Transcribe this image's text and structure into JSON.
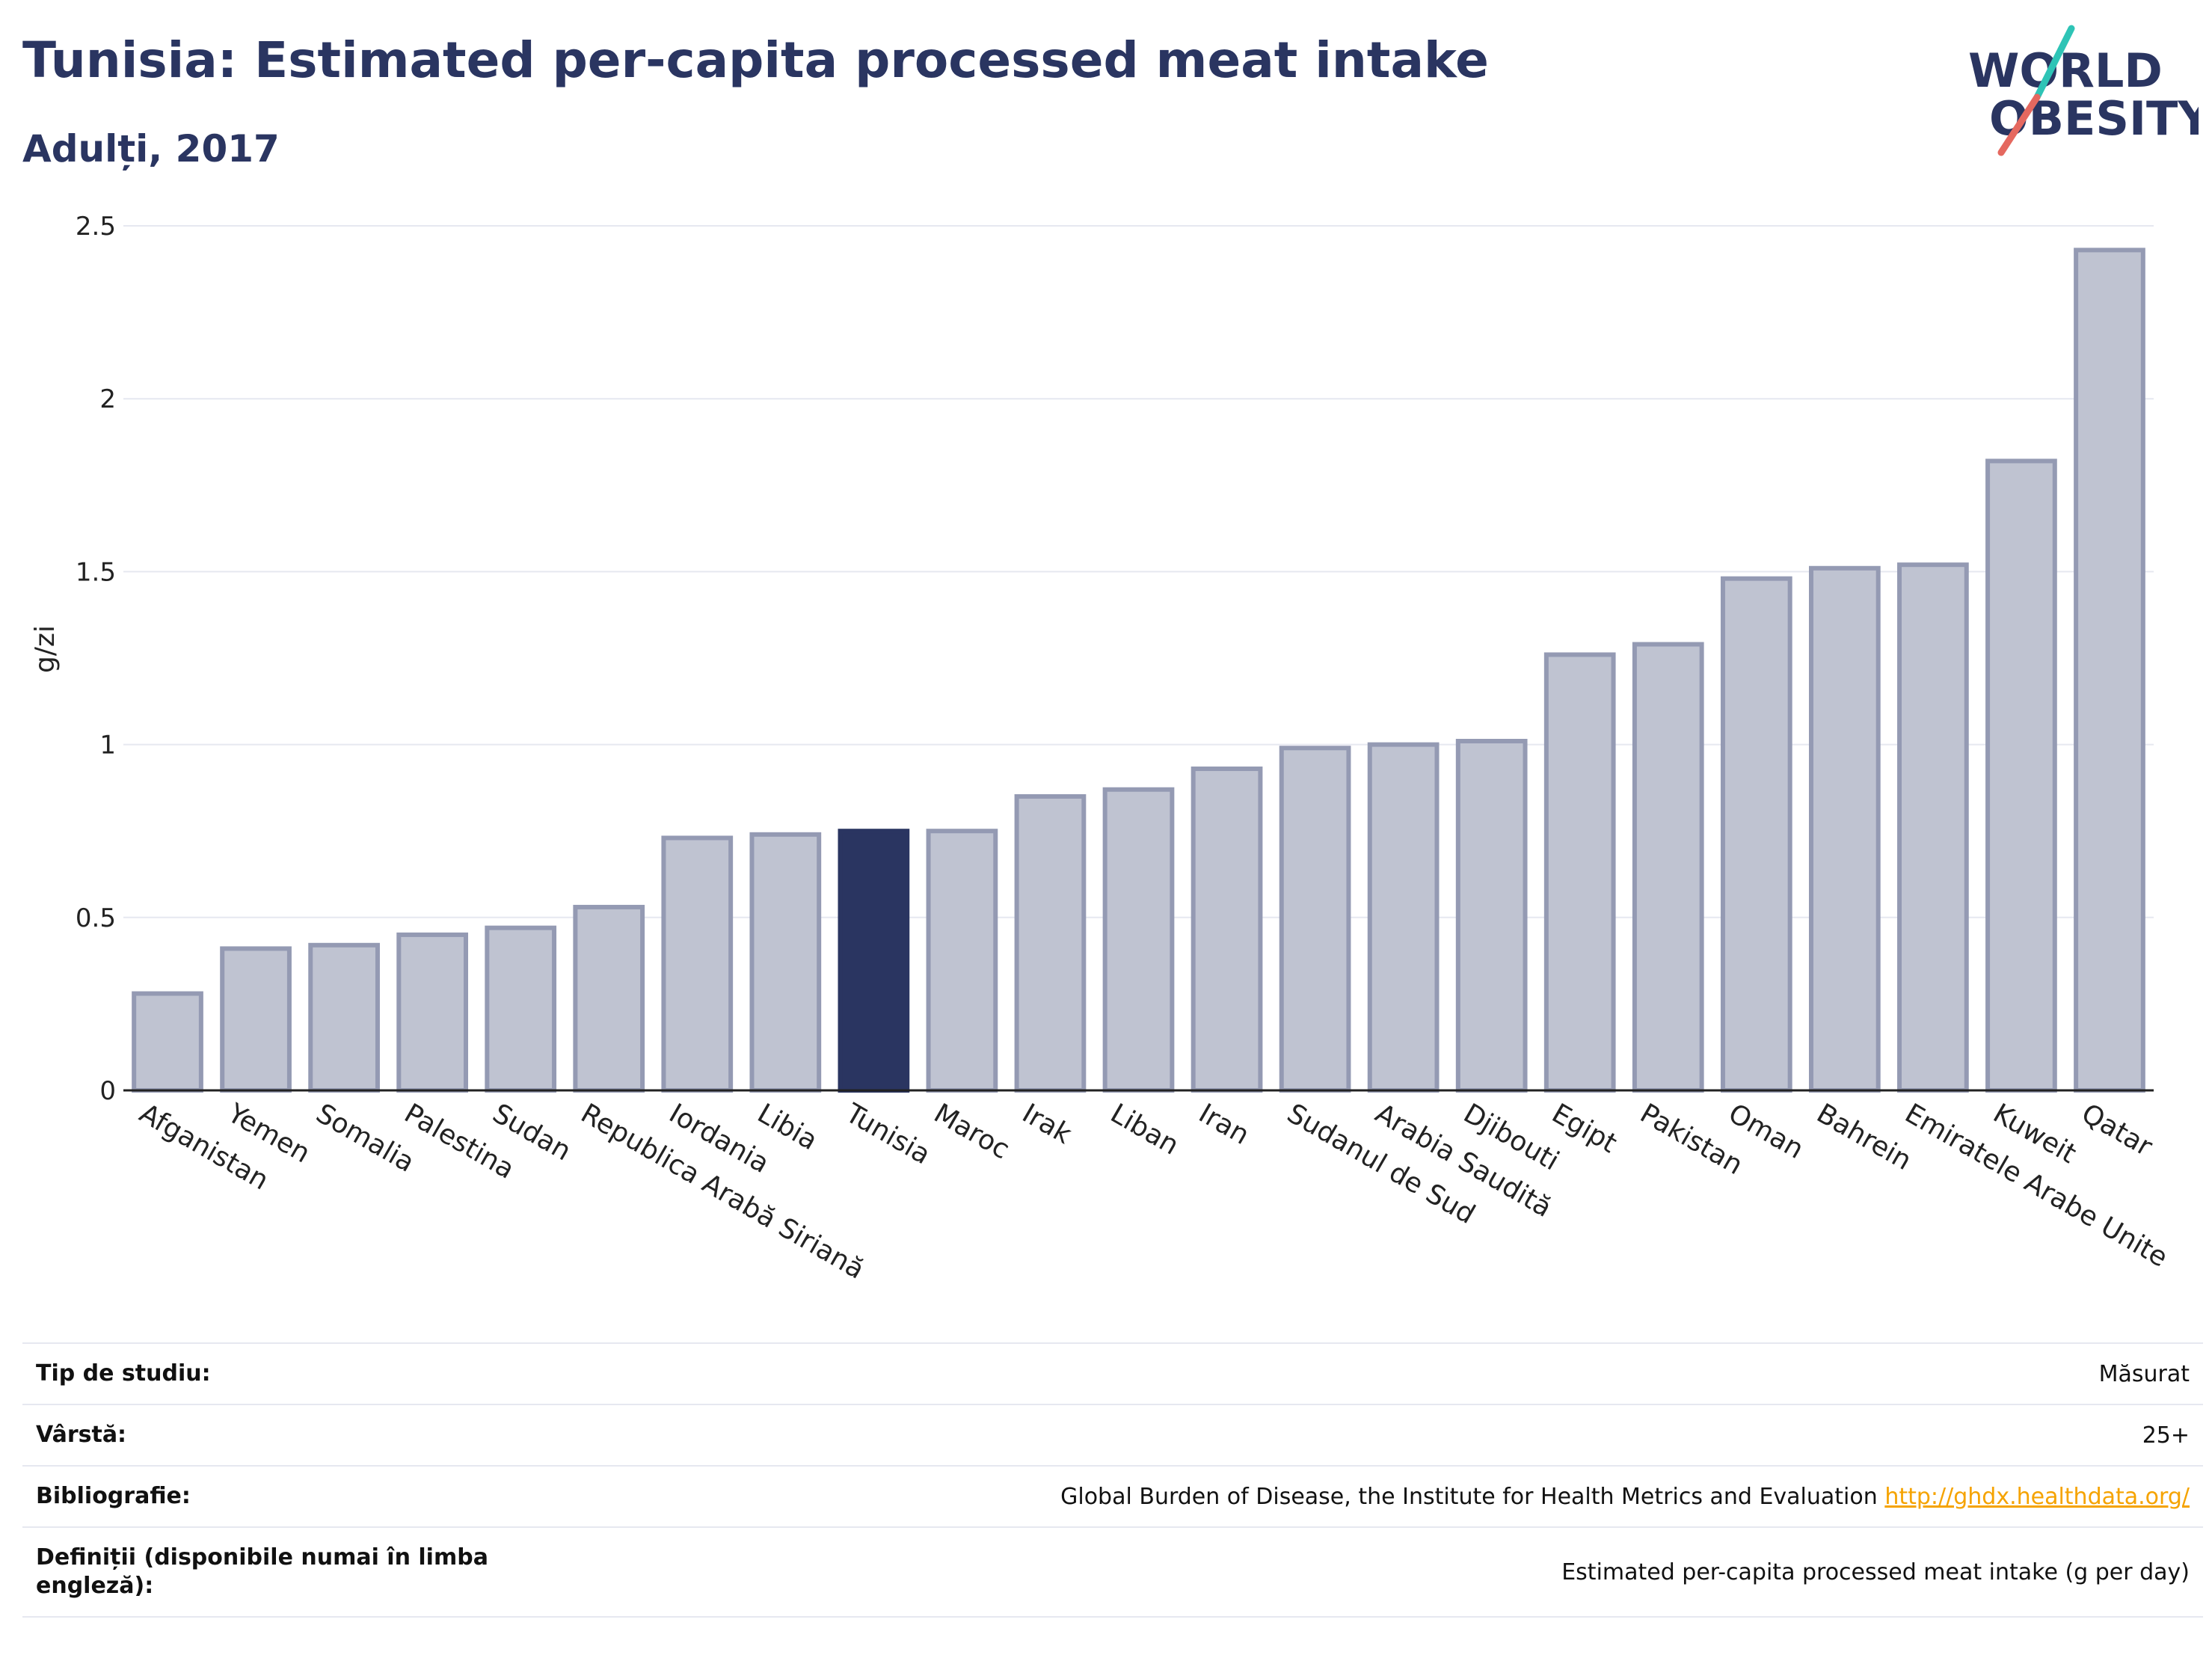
{
  "header": {
    "title": "Tunisia: Estimated per-capita processed meat intake",
    "subtitle": "Adulți, 2017"
  },
  "logo": {
    "line1": "WORLD",
    "line2": "OBESITY",
    "colors": {
      "text": "#2a3561",
      "teal": "#2ec4b6",
      "coral": "#e5685f"
    }
  },
  "colors": {
    "bar": "#bfc3d1",
    "bar_border": "#949ab3",
    "highlight": "#2a3561",
    "grid": "#e6e8f0",
    "axis": "#222222"
  },
  "chart_data": {
    "type": "bar",
    "ylabel": "g/zi",
    "ylim": [
      0,
      2.5
    ],
    "yticks": [
      0,
      0.5,
      1,
      1.5,
      2,
      2.5
    ],
    "ytick_labels": [
      "0",
      "0.5",
      "1",
      "1.5",
      "2",
      "2.5"
    ],
    "grid": true,
    "highlight": "Tunisia",
    "categories": [
      "Afganistan",
      "Yemen",
      "Somalia",
      "Palestina",
      "Sudan",
      "Republica Arabă Siriană",
      "Iordania",
      "Libia",
      "Tunisia",
      "Maroc",
      "Irak",
      "Liban",
      "Iran",
      "Sudanul de Sud",
      "Arabia Saudită",
      "Djibouti",
      "Egipt",
      "Pakistan",
      "Oman",
      "Bahrein",
      "Emiratele Arabe Unite",
      "Kuweit",
      "Qatar"
    ],
    "values": [
      0.28,
      0.41,
      0.42,
      0.45,
      0.47,
      0.53,
      0.73,
      0.74,
      0.75,
      0.75,
      0.85,
      0.87,
      0.93,
      0.99,
      1.0,
      1.01,
      1.26,
      1.29,
      1.48,
      1.51,
      1.52,
      1.82,
      2.43
    ]
  },
  "metadata": {
    "rows": [
      {
        "label": "Tip de studiu:",
        "value": "Măsurat"
      },
      {
        "label": "Vârstă:",
        "value": "25+"
      },
      {
        "label": "Bibliografie:",
        "value": "Global Burden of Disease, the Institute for Health Metrics and Evaluation",
        "link": "http://ghdx.healthdata.org/"
      },
      {
        "label": "Definiții (disponibile numai în limba engleză):",
        "value": "Estimated per-capita processed meat intake (g per day)"
      }
    ]
  }
}
